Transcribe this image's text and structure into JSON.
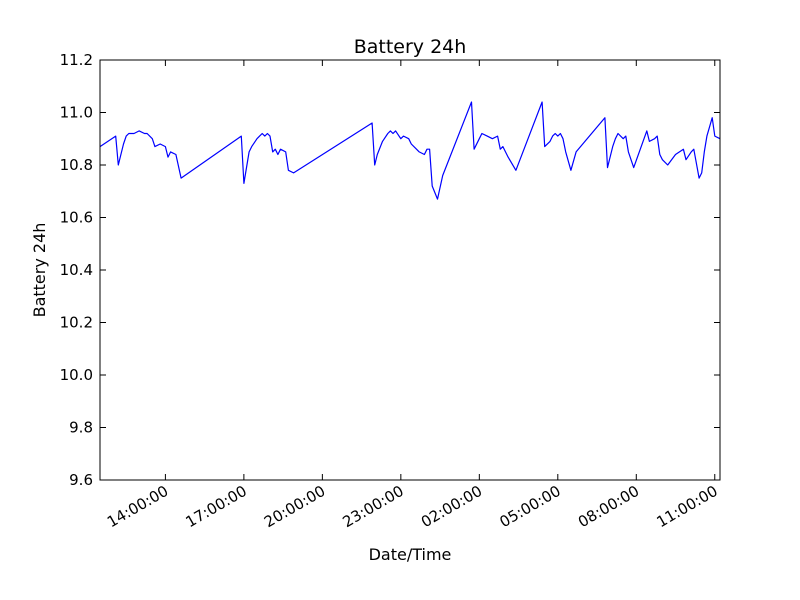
{
  "chart_data": {
    "type": "line",
    "title": "Battery 24h",
    "xlabel": "Date/Time",
    "ylabel": "Battery 24h",
    "ylim": [
      9.6,
      11.2
    ],
    "xlim_hours": [
      11.5,
      35.2
    ],
    "yticks": [
      9.6,
      9.8,
      10.0,
      10.2,
      10.4,
      10.6,
      10.8,
      11.0,
      11.2
    ],
    "ytick_labels": [
      "9.6",
      "9.8",
      "10.0",
      "10.2",
      "10.4",
      "10.6",
      "10.8",
      "11.0",
      "11.2"
    ],
    "xticks_hours": [
      14,
      17,
      20,
      23,
      26,
      29,
      32,
      35
    ],
    "xtick_labels": [
      "14:00:00",
      "17:00:00",
      "20:00:00",
      "23:00:00",
      "02:00:00",
      "05:00:00",
      "08:00:00",
      "11:00:00"
    ],
    "grid": false,
    "legend": "none",
    "series": [
      {
        "color": "#0000ff",
        "x": [
          11.5,
          12.1,
          12.2,
          12.4,
          12.5,
          12.6,
          12.8,
          13.0,
          13.2,
          13.3,
          13.5,
          13.6,
          13.8,
          14.0,
          14.1,
          14.2,
          14.4,
          14.6,
          16.9,
          17.0,
          17.2,
          17.3,
          17.5,
          17.6,
          17.7,
          17.8,
          17.9,
          18.0,
          18.1,
          18.2,
          18.3,
          18.4,
          18.6,
          18.7,
          18.9,
          21.9,
          22.0,
          22.1,
          22.3,
          22.5,
          22.6,
          22.7,
          22.8,
          23.0,
          23.1,
          23.3,
          23.4,
          23.6,
          23.7,
          23.9,
          24.0,
          24.1,
          24.2,
          24.4,
          24.6,
          25.7,
          25.8,
          26.0,
          26.1,
          26.3,
          26.5,
          26.7,
          26.8,
          26.9,
          27.0,
          27.1,
          27.4,
          28.4,
          28.5,
          28.7,
          28.8,
          28.9,
          29.0,
          29.1,
          29.2,
          29.3,
          29.5,
          29.7,
          30.8,
          30.9,
          31.1,
          31.2,
          31.3,
          31.5,
          31.6,
          31.7,
          31.9,
          32.4,
          32.5,
          32.7,
          32.8,
          32.9,
          33.0,
          33.2,
          33.5,
          33.8,
          33.9,
          34.1,
          34.2,
          34.4,
          34.5,
          34.6,
          34.7,
          34.9,
          35.0,
          35.2
        ],
        "y": [
          10.87,
          10.91,
          10.8,
          10.88,
          10.91,
          10.92,
          10.92,
          10.93,
          10.92,
          10.92,
          10.9,
          10.87,
          10.88,
          10.87,
          10.83,
          10.85,
          10.84,
          10.75,
          10.91,
          10.73,
          10.85,
          10.87,
          10.9,
          10.91,
          10.92,
          10.91,
          10.92,
          10.91,
          10.85,
          10.86,
          10.84,
          10.86,
          10.85,
          10.78,
          10.77,
          10.96,
          10.8,
          10.84,
          10.89,
          10.92,
          10.93,
          10.92,
          10.93,
          10.9,
          10.91,
          10.9,
          10.88,
          10.86,
          10.85,
          10.84,
          10.86,
          10.86,
          10.72,
          10.67,
          10.76,
          11.04,
          10.86,
          10.9,
          10.92,
          10.91,
          10.9,
          10.91,
          10.86,
          10.87,
          10.85,
          10.83,
          10.78,
          11.04,
          10.87,
          10.89,
          10.91,
          10.92,
          10.91,
          10.92,
          10.9,
          10.85,
          10.78,
          10.85,
          10.98,
          10.79,
          10.87,
          10.9,
          10.92,
          10.9,
          10.91,
          10.85,
          10.79,
          10.93,
          10.89,
          10.9,
          10.91,
          10.84,
          10.82,
          10.8,
          10.84,
          10.86,
          10.82,
          10.85,
          10.86,
          10.75,
          10.77,
          10.85,
          10.91,
          10.98,
          10.91,
          10.9
        ]
      }
    ]
  }
}
